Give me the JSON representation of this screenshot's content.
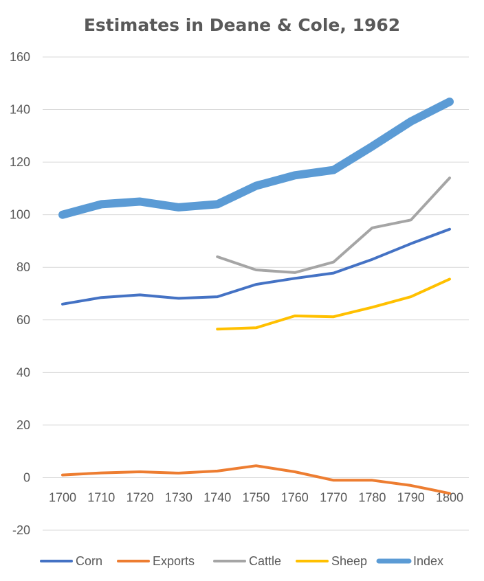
{
  "chart_data": {
    "type": "line",
    "title": "Estimates in Deane & Cole, 1962",
    "xlabel": "",
    "ylabel": "",
    "x": [
      "1700",
      "1710",
      "1720",
      "1730",
      "1740",
      "1750",
      "1760",
      "1770",
      "1780",
      "1790",
      "1800"
    ],
    "ylim": [
      -20,
      160
    ],
    "yticks": [
      -20,
      0,
      20,
      40,
      60,
      80,
      100,
      120,
      140,
      160
    ],
    "grid": true,
    "legend_position": "bottom",
    "series": [
      {
        "name": "Corn",
        "color": "#4472c4",
        "width": 4,
        "values": [
          66,
          68.5,
          69.5,
          68.2,
          68.8,
          73.5,
          75.8,
          77.8,
          83,
          89,
          94.5
        ]
      },
      {
        "name": "Exports",
        "color": "#ed7d31",
        "width": 4,
        "values": [
          1,
          1.8,
          2.2,
          1.7,
          2.5,
          4.5,
          2.2,
          -1,
          -1,
          -3,
          -6
        ]
      },
      {
        "name": "Cattle",
        "color": "#a5a5a5",
        "width": 4,
        "values": [
          null,
          null,
          null,
          null,
          84,
          79,
          78,
          82,
          95,
          98,
          114
        ]
      },
      {
        "name": "Sheep",
        "color": "#ffc000",
        "width": 4,
        "values": [
          null,
          null,
          null,
          null,
          56.5,
          57,
          61.5,
          61.2,
          64.8,
          68.8,
          75.5
        ]
      },
      {
        "name": "Index",
        "color": "#5b9bd5",
        "width": 12,
        "values": [
          100,
          104,
          105,
          102.8,
          104,
          111,
          115,
          117,
          126,
          135.5,
          143
        ]
      }
    ]
  }
}
